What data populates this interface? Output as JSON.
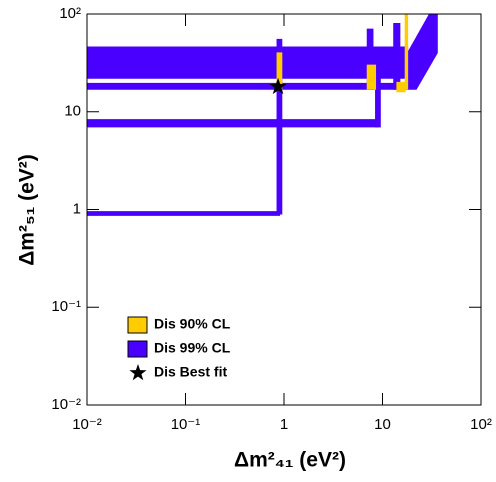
{
  "chart_data": {
    "type": "region",
    "xlabel": "Δm²₄₁ (eV²)",
    "ylabel": "Δm²₅₁ (eV²)",
    "xscale": "log",
    "yscale": "log",
    "xlim": [
      0.01,
      100
    ],
    "ylim": [
      0.01,
      100
    ],
    "xticks": [
      {
        "value": 0.01,
        "label": "10⁻²"
      },
      {
        "value": 0.1,
        "label": "10⁻¹"
      },
      1,
      10,
      {
        "value": 100,
        "label": "10²"
      }
    ],
    "yticks": [
      {
        "value": 0.01,
        "label": "10⁻²"
      },
      {
        "value": 0.1,
        "label": "10⁻¹"
      },
      1,
      10,
      {
        "value": 100,
        "label": "10²"
      }
    ],
    "legend": "lower left",
    "series": [
      {
        "name": "Dis 99% CL",
        "color": "#4a00ff",
        "regions": [
          {
            "x": [
              0.01,
              18,
              18,
              0.01
            ],
            "y": [
              22,
              22,
              46,
              46
            ]
          },
          {
            "x": [
              0.01,
              18,
              18,
              0.01
            ],
            "y": [
              17,
              17,
              19.5,
              19.5
            ]
          },
          {
            "x": [
              0.01,
              9,
              9,
              0.01
            ],
            "y": [
              7,
              7,
              8.3,
              8.3
            ]
          },
          {
            "x": [
              0.01,
              0.9,
              0.9,
              0.01
            ],
            "y": [
              0.87,
              0.87,
              0.95,
              0.95
            ]
          },
          {
            "x": [
              0.85,
              0.95,
              0.95,
              0.85
            ],
            "y": [
              0.9,
              0.9,
              55,
              55
            ]
          },
          {
            "x": [
              8.5,
              9.5,
              9.5,
              8.5
            ],
            "y": [
              7,
              7,
              30,
              30
            ]
          },
          {
            "x": [
              7,
              8,
              8,
              7
            ],
            "y": [
              17,
              17,
              70,
              70
            ]
          },
          {
            "x": [
              13,
              15,
              15,
              13
            ],
            "y": [
              17,
              17,
              80,
              80
            ]
          },
          {
            "x": [
              18,
              22,
              36,
              36,
              30,
              18
            ],
            "y": [
              17,
              17,
              40,
              100,
              100,
              40
            ]
          }
        ]
      },
      {
        "name": "Dis 90% CL",
        "color": "#ffcc00",
        "regions": [
          {
            "x": [
              0.85,
              0.95,
              0.95,
              0.85
            ],
            "y": [
              17,
              17,
              40,
              40
            ]
          },
          {
            "x": [
              7,
              8.5,
              8.5,
              7
            ],
            "y": [
              17,
              17,
              30,
              30
            ]
          },
          {
            "x": [
              14,
              17,
              17,
              14
            ],
            "y": [
              16,
              16,
              20,
              20
            ]
          },
          {
            "x": [
              17,
              18,
              18,
              17
            ],
            "y": [
              17,
              17,
              100,
              100
            ]
          }
        ]
      },
      {
        "name": "Dis Best fit",
        "color": "#000000",
        "x": [
          0.87
        ],
        "y": [
          18
        ]
      }
    ]
  }
}
